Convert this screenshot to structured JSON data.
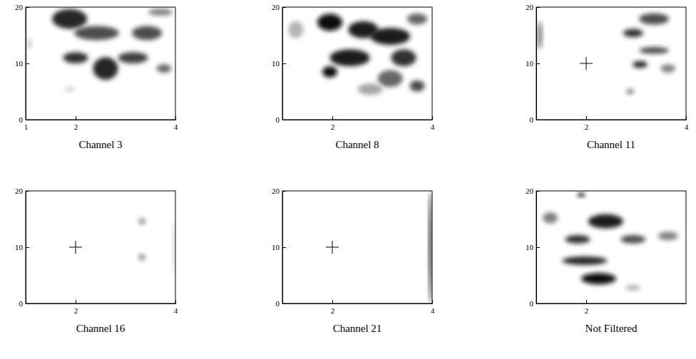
{
  "chart_data": [
    {
      "type": "heatmap",
      "title": "Channel 3",
      "xlim": [
        1,
        4
      ],
      "ylim": [
        0,
        20
      ],
      "xticks": [
        1,
        2,
        4
      ],
      "yticks": [
        0,
        10,
        20
      ],
      "blobs": [
        {
          "x": 1.88,
          "y": 17.9,
          "width": 0.7,
          "height": 3.5,
          "intensity": 0.85
        },
        {
          "x": 2.42,
          "y": 15.4,
          "width": 0.9,
          "height": 2.5,
          "intensity": 0.7
        },
        {
          "x": 3.43,
          "y": 15.4,
          "width": 0.6,
          "height": 2.5,
          "intensity": 0.7
        },
        {
          "x": 2.0,
          "y": 11,
          "width": 0.5,
          "height": 2,
          "intensity": 0.8
        },
        {
          "x": 2.6,
          "y": 9.1,
          "width": 0.5,
          "height": 4,
          "intensity": 0.85
        },
        {
          "x": 3.15,
          "y": 11,
          "width": 0.6,
          "height": 2,
          "intensity": 0.75
        },
        {
          "x": 3.77,
          "y": 9.1,
          "width": 0.3,
          "height": 1.5,
          "intensity": 0.6
        },
        {
          "x": 3.7,
          "y": 19.1,
          "width": 0.5,
          "height": 1.2,
          "intensity": 0.5
        },
        {
          "x": 1.88,
          "y": 5.4,
          "width": 0.2,
          "height": 0.8,
          "intensity": 0.2
        },
        {
          "x": 1.07,
          "y": 13.5,
          "width": 0.1,
          "height": 2,
          "intensity": 0.2
        }
      ]
    },
    {
      "type": "heatmap",
      "title": "Channel 8",
      "xlim": [
        1,
        4
      ],
      "ylim": [
        0,
        20
      ],
      "xticks": [
        2,
        4
      ],
      "yticks": [
        0,
        10,
        20
      ],
      "blobs": [
        {
          "x": 1.95,
          "y": 17.3,
          "width": 0.5,
          "height": 3,
          "intensity": 0.95
        },
        {
          "x": 2.62,
          "y": 16,
          "width": 0.6,
          "height": 3,
          "intensity": 0.9
        },
        {
          "x": 3.16,
          "y": 14.8,
          "width": 0.8,
          "height": 3,
          "intensity": 0.9
        },
        {
          "x": 2.35,
          "y": 11,
          "width": 0.8,
          "height": 3,
          "intensity": 0.9
        },
        {
          "x": 1.95,
          "y": 8.5,
          "width": 0.3,
          "height": 2,
          "intensity": 0.95
        },
        {
          "x": 3.43,
          "y": 11,
          "width": 0.5,
          "height": 3,
          "intensity": 0.8
        },
        {
          "x": 3.16,
          "y": 7.3,
          "width": 0.5,
          "height": 3,
          "intensity": 0.6
        },
        {
          "x": 3.7,
          "y": 17.9,
          "width": 0.4,
          "height": 2,
          "intensity": 0.6
        },
        {
          "x": 1.27,
          "y": 16,
          "width": 0.3,
          "height": 3,
          "intensity": 0.3
        },
        {
          "x": 2.76,
          "y": 5.4,
          "width": 0.5,
          "height": 2,
          "intensity": 0.35
        },
        {
          "x": 3.7,
          "y": 6,
          "width": 0.3,
          "height": 2,
          "intensity": 0.7
        }
      ]
    },
    {
      "type": "heatmap",
      "title": "Channel 11",
      "xlim": [
        1,
        4
      ],
      "ylim": [
        0,
        20
      ],
      "xticks": [
        2,
        4
      ],
      "yticks": [
        0,
        10,
        20
      ],
      "crosshair": {
        "x": 2,
        "y": 10
      },
      "blobs": [
        {
          "x": 1.07,
          "y": 15,
          "width": 0.1,
          "height": 5,
          "intensity": 0.5
        },
        {
          "x": 3.36,
          "y": 17.9,
          "width": 0.6,
          "height": 2,
          "intensity": 0.7
        },
        {
          "x": 2.94,
          "y": 15.4,
          "width": 0.4,
          "height": 1.5,
          "intensity": 0.8
        },
        {
          "x": 3.36,
          "y": 12.3,
          "width": 0.6,
          "height": 1.2,
          "intensity": 0.7
        },
        {
          "x": 3.08,
          "y": 9.8,
          "width": 0.3,
          "height": 1.2,
          "intensity": 0.85
        },
        {
          "x": 3.64,
          "y": 9.1,
          "width": 0.3,
          "height": 1.5,
          "intensity": 0.5
        },
        {
          "x": 2.88,
          "y": 5,
          "width": 0.15,
          "height": 1,
          "intensity": 0.5
        }
      ]
    },
    {
      "type": "heatmap",
      "title": "Channel 16",
      "xlim": [
        1,
        4
      ],
      "ylim": [
        0,
        20
      ],
      "xticks": [
        2,
        4
      ],
      "yticks": [
        0,
        10,
        20
      ],
      "crosshair": {
        "x": 2,
        "y": 10
      },
      "blobs": [
        {
          "x": 3.33,
          "y": 14.6,
          "width": 0.15,
          "height": 1.2,
          "intensity": 0.4
        },
        {
          "x": 3.33,
          "y": 8.2,
          "width": 0.15,
          "height": 1.2,
          "intensity": 0.4
        },
        {
          "x": 3.97,
          "y": 10,
          "width": 0.05,
          "height": 10,
          "intensity": 0.2
        }
      ]
    },
    {
      "type": "heatmap",
      "title": "Channel 21",
      "xlim": [
        1,
        4
      ],
      "ylim": [
        0,
        20
      ],
      "xticks": [
        2,
        4
      ],
      "yticks": [
        0,
        10,
        20
      ],
      "crosshair": {
        "x": 2,
        "y": 10
      },
      "blobs": [
        {
          "x": 3.97,
          "y": 10,
          "width": 0.06,
          "height": 20,
          "intensity": 0.95
        }
      ]
    },
    {
      "type": "heatmap",
      "title": "Not Filtered",
      "xlim": [
        1,
        4
      ],
      "ylim": [
        0,
        20
      ],
      "xticks": [
        2
      ],
      "yticks": [
        0,
        10,
        20
      ],
      "blobs": [
        {
          "x": 1.9,
          "y": 19.3,
          "width": 0.15,
          "height": 0.8,
          "intensity": 0.9
        },
        {
          "x": 2.39,
          "y": 14.6,
          "width": 0.7,
          "height": 2.5,
          "intensity": 0.9
        },
        {
          "x": 1.83,
          "y": 11.4,
          "width": 0.5,
          "height": 1.5,
          "intensity": 0.8
        },
        {
          "x": 2.94,
          "y": 11.4,
          "width": 0.5,
          "height": 1.5,
          "intensity": 0.7
        },
        {
          "x": 1.97,
          "y": 7.6,
          "width": 0.9,
          "height": 1.5,
          "intensity": 0.85
        },
        {
          "x": 2.25,
          "y": 4.4,
          "width": 0.7,
          "height": 2,
          "intensity": 0.95
        },
        {
          "x": 3.64,
          "y": 12,
          "width": 0.4,
          "height": 1.5,
          "intensity": 0.5
        },
        {
          "x": 1.28,
          "y": 15.2,
          "width": 0.3,
          "height": 2,
          "intensity": 0.5
        },
        {
          "x": 2.94,
          "y": 2.8,
          "width": 0.3,
          "height": 1,
          "intensity": 0.3
        }
      ]
    }
  ]
}
